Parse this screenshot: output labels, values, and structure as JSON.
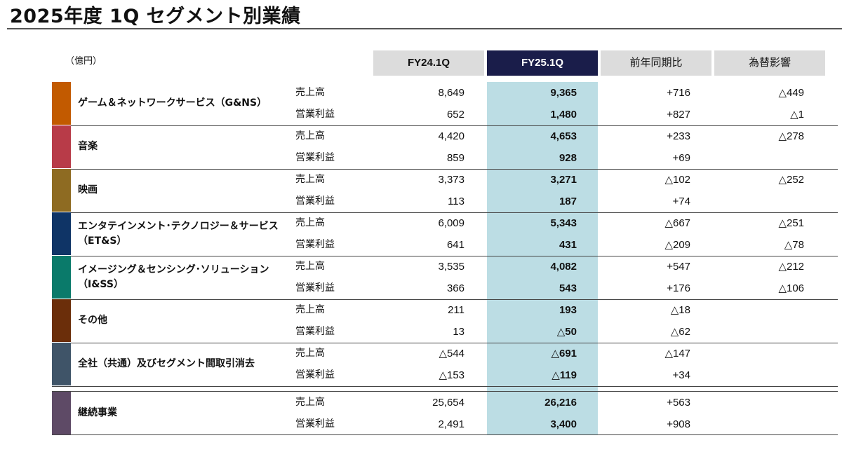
{
  "title": "2025年度 1Q セグメント別業績",
  "unit": "（億円）",
  "headers": {
    "fy24": "FY24.1Q",
    "fy25": "FY25.1Q",
    "yoy": "前年同期比",
    "fx": "為替影響"
  },
  "colors": {
    "header_gray": "#dcdcdc",
    "header_dark": "#1a1d4a",
    "highlight_column": "#bcdde4"
  },
  "segments": [
    {
      "name_line1": "ゲーム＆ネットワークサービス（G&NS）",
      "name_line2": "",
      "color": "#c25a00",
      "rows": [
        {
          "metric": "売上高",
          "fy24": "8,649",
          "fy25": "9,365",
          "yoy": "+716",
          "fx": "△449"
        },
        {
          "metric": "営業利益",
          "fy24": "652",
          "fy25": "1,480",
          "yoy": "+827",
          "fx": "△1"
        }
      ]
    },
    {
      "name_line1": "音楽",
      "name_line2": "",
      "color": "#b83b48",
      "rows": [
        {
          "metric": "売上高",
          "fy24": "4,420",
          "fy25": "4,653",
          "yoy": "+233",
          "fx": "△278"
        },
        {
          "metric": "営業利益",
          "fy24": "859",
          "fy25": "928",
          "yoy": "+69",
          "fx": ""
        }
      ]
    },
    {
      "name_line1": "映画",
      "name_line2": "",
      "color": "#8e6b22",
      "rows": [
        {
          "metric": "売上高",
          "fy24": "3,373",
          "fy25": "3,271",
          "yoy": "△102",
          "fx": "△252"
        },
        {
          "metric": "営業利益",
          "fy24": "113",
          "fy25": "187",
          "yoy": "+74",
          "fx": ""
        }
      ]
    },
    {
      "name_line1": "エンタテインメント･テクノロジー＆サービス",
      "name_line2": "（ET&S）",
      "color": "#0f3466",
      "rows": [
        {
          "metric": "売上高",
          "fy24": "6,009",
          "fy25": "5,343",
          "yoy": "△667",
          "fx": "△251"
        },
        {
          "metric": "営業利益",
          "fy24": "641",
          "fy25": "431",
          "yoy": "△209",
          "fx": "△78"
        }
      ]
    },
    {
      "name_line1": "イメージング＆センシング･ソリューション",
      "name_line2": "（I&SS）",
      "color": "#0a7a6a",
      "rows": [
        {
          "metric": "売上高",
          "fy24": "3,535",
          "fy25": "4,082",
          "yoy": "+547",
          "fx": "△212"
        },
        {
          "metric": "営業利益",
          "fy24": "366",
          "fy25": "543",
          "yoy": "+176",
          "fx": "△106"
        }
      ]
    },
    {
      "name_line1": "その他",
      "name_line2": "",
      "color": "#6b2e0a",
      "rows": [
        {
          "metric": "売上高",
          "fy24": "211",
          "fy25": "193",
          "yoy": "△18",
          "fx": ""
        },
        {
          "metric": "営業利益",
          "fy24": "13",
          "fy25": "△50",
          "yoy": "△62",
          "fx": ""
        }
      ]
    },
    {
      "name_line1": "全社（共通）及びセグメント間取引消去",
      "name_line2": "",
      "color": "#3f5468",
      "rows": [
        {
          "metric": "売上高",
          "fy24": "△544",
          "fy25": "△691",
          "yoy": "△147",
          "fx": ""
        },
        {
          "metric": "営業利益",
          "fy24": "△153",
          "fy25": "△119",
          "yoy": "+34",
          "fx": ""
        }
      ]
    },
    {
      "name_line1": "継続事業",
      "name_line2": "",
      "color": "#5e4a66",
      "rows": [
        {
          "metric": "売上高",
          "fy24": "25,654",
          "fy25": "26,216",
          "yoy": "+563",
          "fx": ""
        },
        {
          "metric": "営業利益",
          "fy24": "2,491",
          "fy25": "3,400",
          "yoy": "+908",
          "fx": ""
        }
      ]
    }
  ]
}
